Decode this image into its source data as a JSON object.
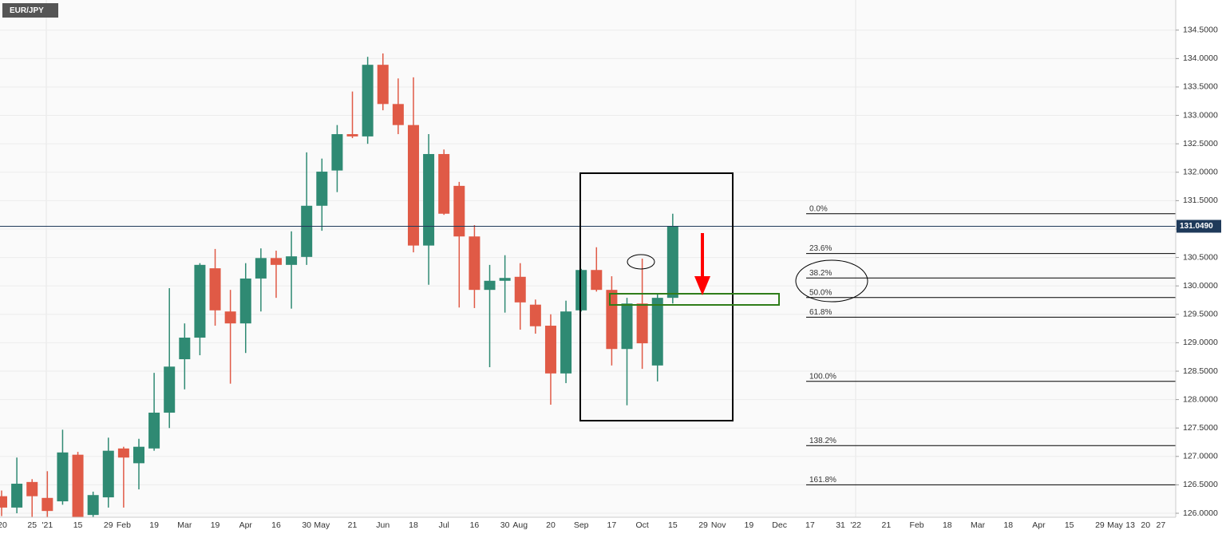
{
  "chart_data": {
    "type": "candlestick",
    "title": "EUR/JPY",
    "categories": [
      "'20",
      null,
      "25",
      "'21",
      null,
      "15",
      null,
      "29",
      "Feb",
      null,
      "19",
      null,
      "Mar",
      null,
      "19",
      null,
      "Apr",
      null,
      "16",
      null,
      "30",
      "May",
      null,
      "21",
      null,
      "Jun",
      null,
      "18",
      null,
      "Jul",
      null,
      "16",
      null,
      "30",
      "Aug",
      null,
      "20",
      null,
      "Sep",
      null,
      "17",
      null,
      "Oct",
      null,
      "15",
      null,
      "29",
      "Nov",
      null,
      "19",
      null,
      "Dec",
      null,
      "17",
      null,
      "31",
      "'22",
      null,
      "21",
      null,
      "Feb",
      null,
      "18",
      null,
      "Mar",
      null,
      "18",
      null,
      "Apr",
      null,
      "15",
      null,
      "29",
      "May",
      "13",
      "20",
      "27"
    ],
    "open": [
      126.3,
      126.1,
      126.55,
      126.27,
      126.21,
      127.03,
      125.97,
      126.28,
      127.14,
      126.88,
      127.14,
      127.77,
      128.71,
      129.09,
      130.31,
      129.55,
      129.34,
      130.13,
      130.49,
      130.37,
      130.51,
      131.41,
      132.03,
      132.67,
      132.63,
      133.89,
      133.2,
      132.83,
      130.71,
      132.32,
      131.76,
      130.87,
      129.93,
      130.09,
      130.16,
      129.67,
      129.3,
      128.46,
      129.57,
      130.28,
      129.93,
      128.89,
      129.69,
      128.6,
      129.79,
      null,
      null,
      null,
      null,
      null,
      null,
      null,
      null,
      null,
      null,
      null,
      null,
      null,
      null,
      null,
      null,
      null,
      null,
      null,
      null,
      null,
      null,
      null,
      null,
      null,
      null,
      null,
      null,
      null,
      null,
      null,
      null
    ],
    "high": [
      126.4,
      126.98,
      126.6,
      126.74,
      127.47,
      127.08,
      126.38,
      127.33,
      127.17,
      127.31,
      128.47,
      129.96,
      129.34,
      130.4,
      130.65,
      129.93,
      130.4,
      130.66,
      130.62,
      130.96,
      132.35,
      132.24,
      132.83,
      133.42,
      134.03,
      134.09,
      133.65,
      133.67,
      132.67,
      132.4,
      131.83,
      131.07,
      130.37,
      130.54,
      130.4,
      129.76,
      129.5,
      129.74,
      130.3,
      130.68,
      130.17,
      129.79,
      130.48,
      129.86,
      131.27,
      null,
      null,
      null,
      null,
      null,
      null,
      null,
      null,
      null,
      null,
      null,
      null,
      null,
      null,
      null,
      null,
      null,
      null,
      null,
      null,
      null,
      null,
      null,
      null,
      null,
      null,
      null,
      null,
      null,
      null,
      null,
      null
    ],
    "low": [
      125.95,
      126.0,
      125.9,
      125.88,
      126.15,
      125.75,
      125.93,
      126.1,
      126.1,
      126.42,
      127.1,
      127.5,
      128.18,
      128.78,
      129.3,
      128.28,
      128.82,
      129.55,
      129.79,
      129.6,
      130.37,
      130.97,
      131.65,
      132.6,
      132.5,
      133.09,
      132.67,
      130.59,
      130.02,
      131.25,
      129.62,
      129.61,
      128.57,
      129.53,
      129.23,
      129.16,
      127.91,
      128.29,
      129.55,
      129.9,
      128.6,
      127.9,
      128.54,
      128.32,
      129.69,
      null,
      null,
      null,
      null,
      null,
      null,
      null,
      null,
      null,
      null,
      null,
      null,
      null,
      null,
      null,
      null,
      null,
      null,
      null,
      null,
      null,
      null,
      null,
      null,
      null,
      null,
      null,
      null,
      null,
      null,
      null,
      null
    ],
    "close": [
      126.1,
      126.52,
      126.3,
      126.04,
      127.07,
      125.8,
      126.32,
      127.1,
      126.98,
      127.17,
      127.77,
      128.58,
      129.09,
      130.37,
      129.57,
      129.34,
      130.13,
      130.49,
      130.37,
      130.52,
      131.41,
      132.01,
      132.67,
      132.63,
      133.89,
      133.2,
      132.83,
      130.71,
      132.32,
      131.27,
      130.87,
      129.93,
      130.09,
      130.14,
      129.71,
      129.29,
      128.46,
      129.55,
      130.28,
      129.93,
      128.89,
      129.69,
      128.99,
      129.79,
      131.05,
      null,
      null,
      null,
      null,
      null,
      null,
      null,
      null,
      null,
      null,
      null,
      null,
      null,
      null,
      null,
      null,
      null,
      null,
      null,
      null,
      null,
      null,
      null,
      null,
      null,
      null,
      null,
      null,
      null,
      null,
      null,
      null
    ],
    "up_color": "#2f8a73",
    "down_color": "#e05a46",
    "ylim": [
      125.93,
      135.03
    ],
    "yticks": [
      {
        "value": 126.0,
        "label": "126.0000"
      },
      {
        "value": 126.5,
        "label": "126.5000"
      },
      {
        "value": 127.0,
        "label": "127.0000"
      },
      {
        "value": 127.5,
        "label": "127.5000"
      },
      {
        "value": 128.0,
        "label": "128.0000"
      },
      {
        "value": 128.5,
        "label": "128.5000"
      },
      {
        "value": 129.0,
        "label": "129.0000"
      },
      {
        "value": 129.5,
        "label": "129.5000"
      },
      {
        "value": 130.0,
        "label": "130.0000"
      },
      {
        "value": 130.5,
        "label": "130.5000"
      },
      {
        "value": 131.0,
        "label": "131.0000"
      },
      {
        "value": 131.5,
        "label": "131.5000"
      },
      {
        "value": 132.0,
        "label": "132.0000"
      },
      {
        "value": 132.5,
        "label": "132.5000"
      },
      {
        "value": 133.0,
        "label": "133.0000"
      },
      {
        "value": 133.5,
        "label": "133.5000"
      },
      {
        "value": 134.0,
        "label": "134.0000"
      },
      {
        "value": 134.5,
        "label": "134.5000"
      }
    ],
    "grid": true,
    "last_price": {
      "value": 131.049,
      "label": "131.0490"
    },
    "fib_levels": [
      {
        "label": "0.0%",
        "value": 131.27
      },
      {
        "label": "23.6%",
        "value": 130.57
      },
      {
        "label": "38.2%",
        "value": 130.14
      },
      {
        "label": "50.0%",
        "value": 129.795
      },
      {
        "label": "61.8%",
        "value": 129.45
      },
      {
        "label": "100.0%",
        "value": 128.32
      },
      {
        "label": "138.2%",
        "value": 127.19
      },
      {
        "label": "161.8%",
        "value": 126.5
      }
    ]
  }
}
